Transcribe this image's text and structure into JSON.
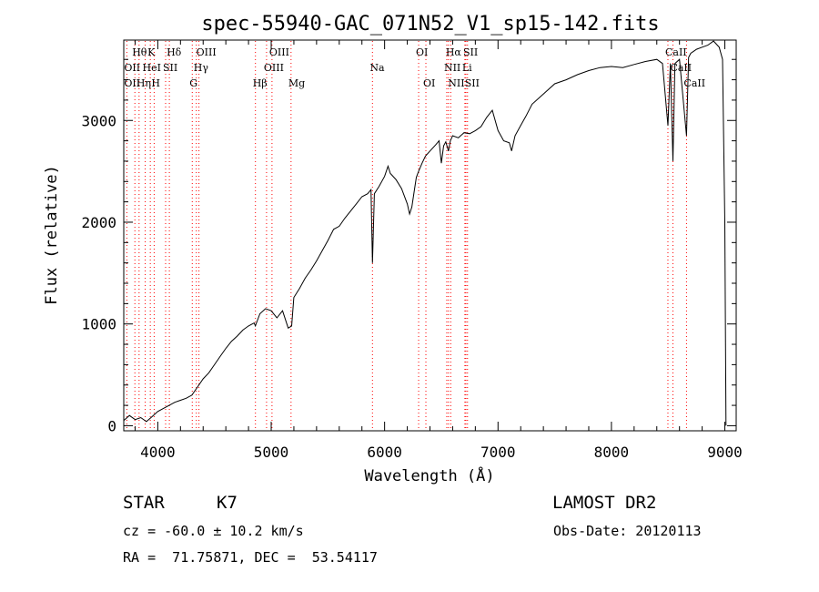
{
  "chart_data": {
    "type": "line",
    "title": "spec-55940-GAC_071N52_V1_sp15-142.fits",
    "xlabel": "Wavelength (Å)",
    "ylabel": "Flux (relative)",
    "xlim": [
      3700,
      9100
    ],
    "ylim": [
      -50,
      3790
    ],
    "xticks": [
      4000,
      5000,
      6000,
      7000,
      8000,
      9000
    ],
    "yticks": [
      0,
      1000,
      2000,
      3000
    ],
    "grid": false,
    "series": [
      {
        "x": [
          3700,
          3750,
          3800,
          3850,
          3900,
          3950,
          4000,
          4050,
          4100,
          4150,
          4200,
          4250,
          4300,
          4350,
          4400,
          4450,
          4500,
          4550,
          4600,
          4650,
          4700,
          4750,
          4800,
          4850,
          4860,
          4900,
          4950,
          5000,
          5050,
          5100,
          5150,
          5180,
          5200,
          5250,
          5300,
          5350,
          5400,
          5450,
          5500,
          5550,
          5600,
          5650,
          5700,
          5750,
          5800,
          5850,
          5880,
          5893,
          5910,
          5950,
          6000,
          6030,
          6050,
          6100,
          6150,
          6200,
          6220,
          6240,
          6260,
          6280,
          6300,
          6330,
          6360,
          6400,
          6450,
          6480,
          6500,
          6520,
          6540,
          6563,
          6580,
          6600,
          6650,
          6700,
          6750,
          6800,
          6850,
          6900,
          6950,
          7000,
          7050,
          7100,
          7120,
          7150,
          7200,
          7250,
          7300,
          7400,
          7500,
          7600,
          7700,
          7800,
          7900,
          8000,
          8100,
          8200,
          8300,
          8400,
          8450,
          8498,
          8520,
          8542,
          8560,
          8600,
          8662,
          8680,
          8700,
          8750,
          8800,
          8850,
          8900,
          8950,
          8980,
          9000,
          9010
        ],
        "values": [
          50,
          100,
          60,
          80,
          40,
          90,
          140,
          170,
          200,
          230,
          250,
          270,
          300,
          380,
          460,
          520,
          600,
          680,
          760,
          830,
          880,
          940,
          980,
          1010,
          980,
          1100,
          1150,
          1130,
          1060,
          1130,
          960,
          980,
          1260,
          1350,
          1450,
          1530,
          1620,
          1720,
          1820,
          1930,
          1960,
          2040,
          2110,
          2180,
          2250,
          2280,
          2320,
          1600,
          2280,
          2350,
          2450,
          2550,
          2480,
          2420,
          2330,
          2180,
          2080,
          2150,
          2300,
          2440,
          2500,
          2580,
          2650,
          2700,
          2760,
          2800,
          2580,
          2750,
          2790,
          2700,
          2800,
          2850,
          2830,
          2880,
          2870,
          2900,
          2940,
          3030,
          3100,
          2900,
          2800,
          2780,
          2700,
          2850,
          2950,
          3050,
          3160,
          3260,
          3360,
          3400,
          3450,
          3490,
          3520,
          3530,
          3520,
          3550,
          3580,
          3600,
          3560,
          2950,
          3560,
          2600,
          3560,
          3600,
          2850,
          3620,
          3660,
          3700,
          3720,
          3740,
          3780,
          3720,
          3600,
          2000,
          0
        ]
      }
    ],
    "spectral_lines": [
      {
        "label": "Hθ",
        "x": 3798,
        "row": 1
      },
      {
        "label": "OII",
        "x": 3727,
        "row": 2
      },
      {
        "label": "OII",
        "x": 3727,
        "row": 3
      },
      {
        "label": "Hη",
        "x": 3835,
        "row": 3
      },
      {
        "label": "HeI",
        "x": 3889,
        "row": 2
      },
      {
        "label": "K",
        "x": 3934,
        "row": 1
      },
      {
        "label": "H",
        "x": 3968,
        "row": 3
      },
      {
        "label": "SII",
        "x": 4069,
        "row": 2
      },
      {
        "label": "Hδ",
        "x": 4102,
        "row": 1
      },
      {
        "label": "OIII",
        "x": 4363,
        "row": 1
      },
      {
        "label": "Hγ",
        "x": 4340,
        "row": 2
      },
      {
        "label": "G",
        "x": 4304,
        "row": 3
      },
      {
        "label": "Hβ",
        "x": 4861,
        "row": 3
      },
      {
        "label": "OIII",
        "x": 4959,
        "row": 2
      },
      {
        "label": "OIII",
        "x": 5007,
        "row": 1
      },
      {
        "label": "Mg",
        "x": 5175,
        "row": 3
      },
      {
        "label": "Na",
        "x": 5893,
        "row": 2
      },
      {
        "label": "OI",
        "x": 6300,
        "row": 1
      },
      {
        "label": "OI",
        "x": 6364,
        "row": 3
      },
      {
        "label": "NII",
        "x": 6548,
        "row": 2
      },
      {
        "label": "Hα",
        "x": 6563,
        "row": 1
      },
      {
        "label": "NII",
        "x": 6583,
        "row": 3
      },
      {
        "label": "Li",
        "x": 6708,
        "row": 2
      },
      {
        "label": "SII",
        "x": 6717,
        "row": 1
      },
      {
        "label": "SII",
        "x": 6731,
        "row": 3
      },
      {
        "label": "CaII",
        "x": 8498,
        "row": 1
      },
      {
        "label": "CaII",
        "x": 8542,
        "row": 2
      },
      {
        "label": "CaII",
        "x": 8662,
        "row": 3
      }
    ],
    "colors": {
      "spectrum": "#000000",
      "line_markers": "#ff0000"
    }
  },
  "info": {
    "object_type": "STAR",
    "subclass": "K7",
    "survey": "LAMOST DR2",
    "redshift_text": "cz = -60.0 ± 10.2 km/s",
    "obs_date_text": "Obs-Date: 20120113",
    "coords_text": "RA =  71.75871, DEC =  53.54117"
  }
}
